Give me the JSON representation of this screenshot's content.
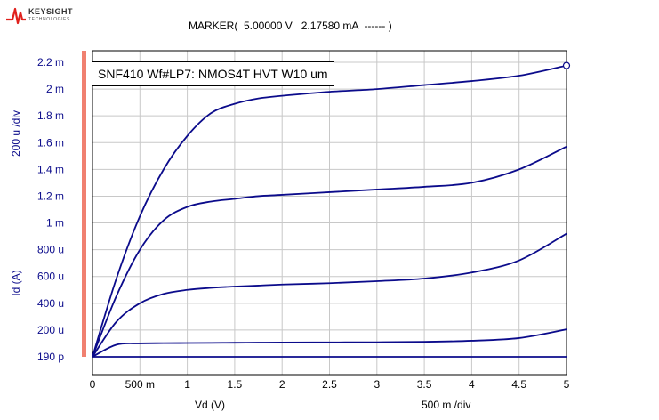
{
  "logo": {
    "brand": "KEYSIGHT",
    "sub": "TECHNOLOGIES",
    "color": "#e0201c"
  },
  "marker_text": "MARKER(  5.00000 V   2.17580 mA  ------ )",
  "annotation": "SNF410 Wf#LP7: NMOS4T HVT W10 um",
  "y_axis": {
    "label": "Id (A)",
    "div_label": "200 u /div",
    "color": "#0b0b8b"
  },
  "x_axis": {
    "label": "Vd (V)",
    "div_label": "500 m /div"
  },
  "chart_data": {
    "type": "line",
    "xlabel": "Vd (V)",
    "ylabel": "Id (A)",
    "xlim": [
      0,
      5
    ],
    "ylim": [
      1.9e-10,
      0.0022
    ],
    "grid": true,
    "x_ticks": [
      0,
      0.5,
      1,
      1.5,
      2,
      2.5,
      3,
      3.5,
      4,
      4.5,
      5
    ],
    "x_tick_labels": [
      "0",
      "500 m",
      "1",
      "1.5",
      "2",
      "2.5",
      "3",
      "3.5",
      "4",
      "4.5",
      "5"
    ],
    "y_ticks": [
      1.9e-10,
      0.0002,
      0.0004,
      0.0006,
      0.0008,
      0.001,
      0.0012,
      0.0014,
      0.0016,
      0.0018,
      0.002,
      0.0022
    ],
    "y_tick_labels": [
      "190 p",
      "200 u",
      "400 u",
      "600 u",
      "800 u",
      "1 m",
      "1.2 m",
      "1.4 m",
      "1.6 m",
      "1.8 m",
      "2 m",
      "2.2 m"
    ],
    "x": [
      0,
      0.25,
      0.5,
      0.75,
      1,
      1.25,
      1.5,
      1.75,
      2,
      2.5,
      3,
      3.5,
      4,
      4.5,
      5
    ],
    "series": [
      {
        "values": [
          1.9e-10,
          1.9e-10,
          1.9e-10,
          1.9e-10,
          1.9e-10,
          1.9e-10,
          1.9e-10,
          1.9e-10,
          1.9e-10,
          1.9e-10,
          1.9e-10,
          1.9e-10,
          1.9e-10,
          1.9e-10,
          1.9e-10
        ]
      },
      {
        "values": [
          0,
          9e-05,
          0.0001,
          0.000102,
          0.000103,
          0.000104,
          0.000105,
          0.000106,
          0.000107,
          0.000108,
          0.000109,
          0.000112,
          0.00012,
          0.00014,
          0.000205
        ]
      },
      {
        "values": [
          0,
          0.00026,
          0.0004,
          0.00047,
          0.0005,
          0.000515,
          0.000525,
          0.000532,
          0.00054,
          0.00055,
          0.000565,
          0.000585,
          0.00063,
          0.00072,
          0.00092
        ]
      },
      {
        "values": [
          0,
          0.00045,
          0.0008,
          0.00102,
          0.00112,
          0.00116,
          0.00118,
          0.0012,
          0.00121,
          0.00123,
          0.00125,
          0.00127,
          0.0013,
          0.0014,
          0.00157
        ]
      },
      {
        "values": [
          0,
          0.00058,
          0.00105,
          0.0014,
          0.00165,
          0.00182,
          0.00189,
          0.00193,
          0.00195,
          0.00198,
          0.002,
          0.00203,
          0.00206,
          0.0021,
          0.0021758
        ]
      }
    ],
    "marker": {
      "x": 5,
      "y": 0.0021758
    }
  }
}
